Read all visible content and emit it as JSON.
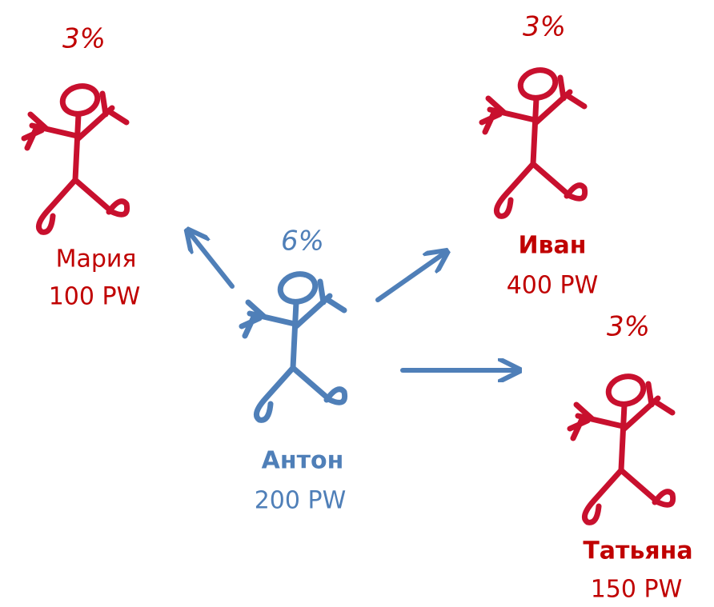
{
  "nodes": [
    {
      "percent": "3%",
      "name": "Мария",
      "amount": "100 PW"
    },
    {
      "percent": "3%",
      "name": "Иван",
      "amount": "400 PW"
    },
    {
      "percent": "6%",
      "name": "Антон",
      "amount": "200 PW"
    },
    {
      "percent": "3%",
      "name": "Татьяна",
      "amount": "150 PW"
    }
  ]
}
